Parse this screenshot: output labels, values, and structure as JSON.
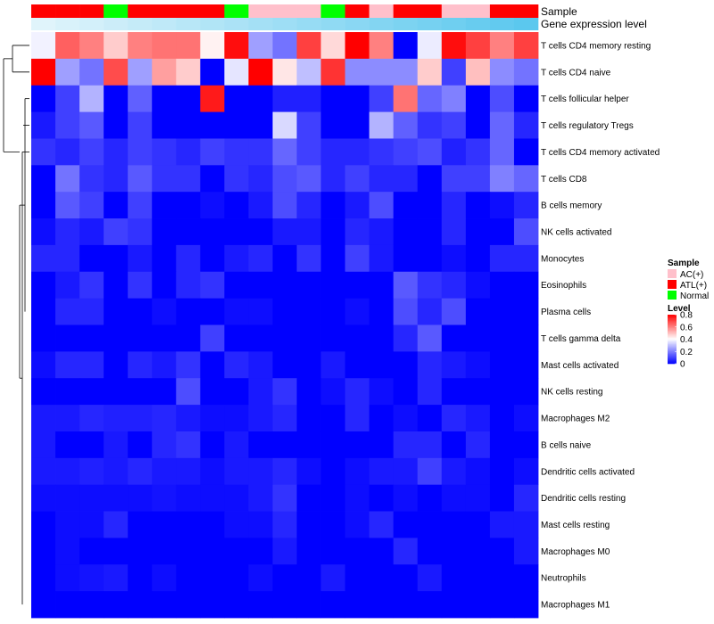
{
  "chart_data": {
    "type": "heatmap",
    "title": "",
    "annotation_tracks": [
      {
        "name": "Sample",
        "values": [
          "ATL(+)",
          "ATL(+)",
          "ATL(+)",
          "Normal",
          "ATL(+)",
          "ATL(+)",
          "ATL(+)",
          "ATL(+)",
          "Normal",
          "AC(+)",
          "AC(+)",
          "AC(+)",
          "Normal",
          "ATL(+)",
          "AC(+)",
          "ATL(+)",
          "ATL(+)",
          "AC(+)",
          "AC(+)",
          "ATL(+)",
          "ATL(+)"
        ]
      },
      {
        "name": "Gene expression level",
        "values": [
          0.0,
          0.05,
          0.1,
          0.15,
          0.2,
          0.25,
          0.3,
          0.35,
          0.4,
          0.45,
          0.5,
          0.55,
          0.6,
          0.65,
          0.7,
          0.75,
          0.8,
          0.85,
          0.9,
          0.95,
          1.0
        ]
      }
    ],
    "rows": [
      "T cells CD4 memory resting",
      "T cells CD4 naive",
      "T cells follicular helper",
      "T cells regulatory  Tregs",
      "T cells CD4 memory activated",
      "T cells CD8",
      "B cells memory",
      "NK cells activated",
      "Monocytes",
      "Eosinophils",
      "Plasma cells",
      "T cells gamma delta",
      "Mast cells activated",
      "NK cells resting",
      "Macrophages M2",
      "B cells naive",
      "Dendritic cells activated",
      "Dendritic cells resting",
      "Mast cells resting",
      "Macrophages M0",
      "Neutrophils",
      "Macrophages M1"
    ],
    "values": [
      [
        0.38,
        0.65,
        0.6,
        0.48,
        0.6,
        0.62,
        0.62,
        0.42,
        0.78,
        0.25,
        0.18,
        0.7,
        0.46,
        0.8,
        0.6,
        0.0,
        0.37,
        0.78,
        0.7,
        0.6,
        0.7
      ],
      [
        0.8,
        0.25,
        0.18,
        0.68,
        0.25,
        0.55,
        0.48,
        0.0,
        0.36,
        0.8,
        0.44,
        0.3,
        0.72,
        0.22,
        0.22,
        0.22,
        0.48,
        0.1,
        0.5,
        0.22,
        0.18
      ],
      [
        0.0,
        0.1,
        0.28,
        0.0,
        0.15,
        0.0,
        0.0,
        0.76,
        0.0,
        0.0,
        0.05,
        0.05,
        0.0,
        0.0,
        0.1,
        0.62,
        0.16,
        0.2,
        0.0,
        0.12,
        0.0
      ],
      [
        0.04,
        0.1,
        0.14,
        0.0,
        0.1,
        0.0,
        0.0,
        0.0,
        0.0,
        0.0,
        0.34,
        0.1,
        0.0,
        0.0,
        0.28,
        0.15,
        0.08,
        0.1,
        0.0,
        0.16,
        0.06
      ],
      [
        0.08,
        0.06,
        0.1,
        0.06,
        0.1,
        0.08,
        0.06,
        0.1,
        0.08,
        0.08,
        0.16,
        0.1,
        0.06,
        0.06,
        0.08,
        0.1,
        0.12,
        0.05,
        0.08,
        0.16,
        0.0
      ],
      [
        0.0,
        0.18,
        0.08,
        0.06,
        0.14,
        0.08,
        0.08,
        0.0,
        0.08,
        0.06,
        0.12,
        0.14,
        0.06,
        0.1,
        0.06,
        0.06,
        0.0,
        0.1,
        0.1,
        0.2,
        0.16
      ],
      [
        0.0,
        0.14,
        0.1,
        0.0,
        0.1,
        0.0,
        0.0,
        0.02,
        0.0,
        0.04,
        0.12,
        0.06,
        0.0,
        0.04,
        0.12,
        0.0,
        0.0,
        0.06,
        0.0,
        0.02,
        0.06
      ],
      [
        0.02,
        0.06,
        0.04,
        0.1,
        0.08,
        0.0,
        0.0,
        0.0,
        0.0,
        0.0,
        0.04,
        0.04,
        0.0,
        0.06,
        0.04,
        0.0,
        0.0,
        0.06,
        0.0,
        0.0,
        0.12
      ],
      [
        0.06,
        0.06,
        0.0,
        0.0,
        0.04,
        0.0,
        0.06,
        0.0,
        0.04,
        0.06,
        0.0,
        0.08,
        0.0,
        0.1,
        0.04,
        0.0,
        0.0,
        0.02,
        0.0,
        0.06,
        0.06
      ],
      [
        0.0,
        0.04,
        0.08,
        0.0,
        0.08,
        0.0,
        0.06,
        0.08,
        0.0,
        0.0,
        0.0,
        0.0,
        0.0,
        0.0,
        0.0,
        0.14,
        0.08,
        0.06,
        0.02,
        0.0,
        0.0
      ],
      [
        0.0,
        0.06,
        0.06,
        0.0,
        0.0,
        0.02,
        0.0,
        0.0,
        0.02,
        0.02,
        0.0,
        0.0,
        0.0,
        0.02,
        0.0,
        0.12,
        0.06,
        0.12,
        0.0,
        0.0,
        0.0
      ],
      [
        0.0,
        0.0,
        0.0,
        0.0,
        0.0,
        0.0,
        0.0,
        0.1,
        0.0,
        0.0,
        0.0,
        0.0,
        0.0,
        0.0,
        0.0,
        0.06,
        0.14,
        0.0,
        0.0,
        0.0,
        0.0
      ],
      [
        0.02,
        0.06,
        0.06,
        0.0,
        0.06,
        0.04,
        0.08,
        0.0,
        0.06,
        0.04,
        0.0,
        0.0,
        0.04,
        0.0,
        0.0,
        0.0,
        0.06,
        0.04,
        0.02,
        0.0,
        0.0
      ],
      [
        0.0,
        0.0,
        0.0,
        0.0,
        0.0,
        0.0,
        0.12,
        0.0,
        0.0,
        0.04,
        0.08,
        0.0,
        0.02,
        0.06,
        0.02,
        0.0,
        0.06,
        0.0,
        0.0,
        0.0,
        0.0
      ],
      [
        0.04,
        0.04,
        0.06,
        0.05,
        0.05,
        0.06,
        0.04,
        0.02,
        0.02,
        0.04,
        0.06,
        0.0,
        0.0,
        0.06,
        0.0,
        0.02,
        0.0,
        0.06,
        0.04,
        0.0,
        0.02
      ],
      [
        0.04,
        0.0,
        0.0,
        0.04,
        0.0,
        0.06,
        0.08,
        0.0,
        0.04,
        0.0,
        0.0,
        0.0,
        0.0,
        0.0,
        0.0,
        0.06,
        0.06,
        0.0,
        0.06,
        0.0,
        0.0
      ],
      [
        0.04,
        0.04,
        0.05,
        0.04,
        0.06,
        0.04,
        0.04,
        0.02,
        0.04,
        0.04,
        0.06,
        0.02,
        0.0,
        0.02,
        0.04,
        0.04,
        0.1,
        0.04,
        0.02,
        0.0,
        0.02
      ],
      [
        0.02,
        0.02,
        0.02,
        0.02,
        0.02,
        0.03,
        0.02,
        0.02,
        0.02,
        0.04,
        0.08,
        0.0,
        0.0,
        0.02,
        0.0,
        0.02,
        0.0,
        0.02,
        0.02,
        0.0,
        0.06
      ],
      [
        0.0,
        0.02,
        0.02,
        0.06,
        0.0,
        0.0,
        0.0,
        0.0,
        0.02,
        0.02,
        0.06,
        0.0,
        0.0,
        0.02,
        0.06,
        0.0,
        0.0,
        0.0,
        0.0,
        0.04,
        0.04
      ],
      [
        0.0,
        0.02,
        0.0,
        0.0,
        0.0,
        0.0,
        0.0,
        0.0,
        0.0,
        0.0,
        0.04,
        0.0,
        0.0,
        0.0,
        0.0,
        0.06,
        0.0,
        0.0,
        0.0,
        0.0,
        0.04
      ],
      [
        0.0,
        0.02,
        0.03,
        0.04,
        0.0,
        0.02,
        0.0,
        0.0,
        0.0,
        0.02,
        0.0,
        0.0,
        0.04,
        0.0,
        0.0,
        0.0,
        0.04,
        0.0,
        0.0,
        0.0,
        0.0
      ],
      [
        0.0,
        0.0,
        0.0,
        0.0,
        0.0,
        0.0,
        0.0,
        0.0,
        0.0,
        0.0,
        0.0,
        0.0,
        0.0,
        0.0,
        0.0,
        0.0,
        0.0,
        0.0,
        0.0,
        0.0,
        0.0
      ]
    ],
    "color_scale": {
      "min": 0,
      "mid": 0.4,
      "max": 0.8,
      "low_color": "#0000ff",
      "mid_color": "#ffffff",
      "high_color": "#ff0000"
    },
    "legend_placement": "right",
    "row_dendrogram": true
  },
  "legend": {
    "sample": {
      "title": "Sample",
      "items": [
        {
          "label": "AC(+)",
          "color": "#ffc0cb"
        },
        {
          "label": "ATL(+)",
          "color": "#ff0000"
        },
        {
          "label": "Normal",
          "color": "#00ff00"
        }
      ]
    },
    "level": {
      "title": "Level",
      "ticks": [
        "0.8",
        "0.6",
        "0.4",
        "0.2",
        "0"
      ],
      "tick_values": [
        0.8,
        0.6,
        0.4,
        0.2,
        0
      ]
    }
  },
  "colors": {
    "expression_low": "#e0f4fb",
    "expression_high": "#5bc8ee"
  }
}
